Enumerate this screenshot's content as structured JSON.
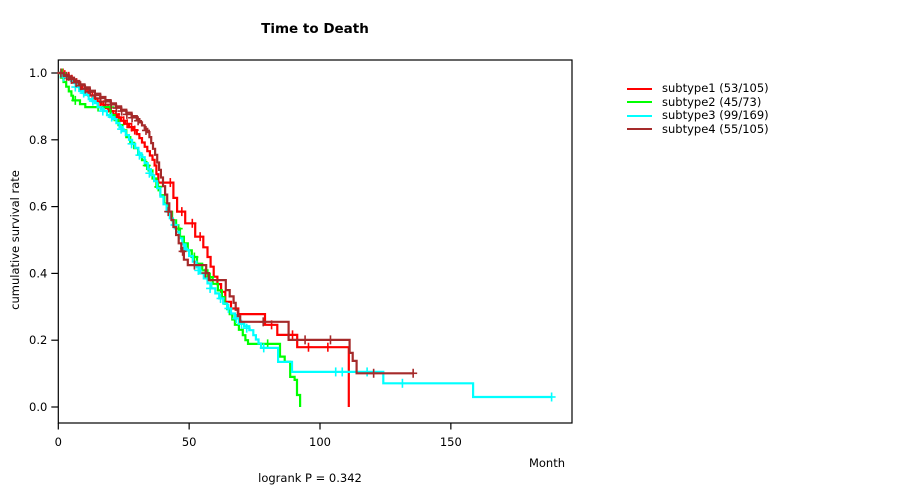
{
  "title": "Time to Death",
  "annotation": "logrank P = 0.342",
  "axes": {
    "x_label": "Month",
    "y_label": "cumulative survival rate",
    "x_ticks": [
      0,
      50,
      100,
      150
    ],
    "x_tick_labels": [
      "0",
      "50",
      "100",
      "150"
    ],
    "y_ticks": [
      0.0,
      0.2,
      0.4,
      0.6,
      0.8,
      1.0
    ],
    "y_tick_labels": [
      "0.0",
      "0.2",
      "0.4",
      "0.6",
      "0.8",
      "1.0"
    ]
  },
  "chart_data": {
    "type": "line",
    "subtype": "kaplan-meier-step",
    "title": "Time to Death",
    "xlabel": "Month",
    "ylabel": "cumulative survival rate",
    "xlim": [
      0,
      196
    ],
    "ylim": [
      0.0,
      1.0
    ],
    "grid": false,
    "legend_position": "right",
    "annotation": "logrank P = 0.342",
    "series": [
      {
        "name": "subtype1",
        "legend_label": "subtype1 (53/105)",
        "events": "53/105",
        "color": "#FF0000",
        "steps": [
          [
            0,
            1.0
          ],
          [
            1.5,
            0.995
          ],
          [
            3,
            0.99
          ],
          [
            4.5,
            0.981
          ],
          [
            6,
            0.971
          ],
          [
            7.5,
            0.962
          ],
          [
            9,
            0.952
          ],
          [
            10.5,
            0.943
          ],
          [
            12,
            0.933
          ],
          [
            13.5,
            0.924
          ],
          [
            15,
            0.914
          ],
          [
            16.5,
            0.905
          ],
          [
            18,
            0.895
          ],
          [
            19.5,
            0.886
          ],
          [
            21,
            0.876
          ],
          [
            22.5,
            0.867
          ],
          [
            24,
            0.857
          ],
          [
            25.5,
            0.848
          ],
          [
            27,
            0.838
          ],
          [
            28.5,
            0.829
          ],
          [
            30,
            0.817
          ],
          [
            31,
            0.805
          ],
          [
            32,
            0.792
          ],
          [
            33,
            0.779
          ],
          [
            34,
            0.766
          ],
          [
            35,
            0.753
          ],
          [
            36,
            0.74
          ],
          [
            36.8,
            0.723
          ],
          [
            37.5,
            0.697
          ],
          [
            38.2,
            0.672
          ],
          [
            44,
            0.626
          ],
          [
            45.4,
            0.585
          ],
          [
            48.5,
            0.55
          ],
          [
            52.3,
            0.51
          ],
          [
            55.4,
            0.478
          ],
          [
            57,
            0.449
          ],
          [
            58.2,
            0.42
          ],
          [
            59.4,
            0.39
          ],
          [
            60.8,
            0.368
          ],
          [
            62.2,
            0.345
          ],
          [
            63.8,
            0.315
          ],
          [
            66,
            0.295
          ],
          [
            68.8,
            0.278
          ],
          [
            79,
            0.246
          ],
          [
            83.7,
            0.216
          ],
          [
            91.3,
            0.179
          ],
          [
            111,
            0.0
          ]
        ],
        "censors": [
          [
            1.8,
            1.0
          ],
          [
            2.5,
            0.995
          ],
          [
            4,
            0.99
          ],
          [
            5.2,
            0.981
          ],
          [
            7,
            0.971
          ],
          [
            8.2,
            0.962
          ],
          [
            10,
            0.952
          ],
          [
            11.3,
            0.943
          ],
          [
            13,
            0.933
          ],
          [
            14.2,
            0.924
          ],
          [
            16,
            0.914
          ],
          [
            17.3,
            0.905
          ],
          [
            19,
            0.895
          ],
          [
            20.2,
            0.886
          ],
          [
            22,
            0.876
          ],
          [
            23.2,
            0.867
          ],
          [
            25,
            0.857
          ],
          [
            26.3,
            0.848
          ],
          [
            28,
            0.838
          ],
          [
            29.2,
            0.829
          ],
          [
            42.8,
            0.672
          ],
          [
            47.2,
            0.585
          ],
          [
            51.2,
            0.55
          ],
          [
            54.2,
            0.51
          ],
          [
            81.5,
            0.246
          ],
          [
            89.5,
            0.216
          ],
          [
            95.6,
            0.179
          ],
          [
            103,
            0.179
          ]
        ]
      },
      {
        "name": "subtype2",
        "legend_label": "subtype2 (45/73)",
        "events": "45/73",
        "color": "#00FF00",
        "steps": [
          [
            0,
            1.0
          ],
          [
            1,
            0.986
          ],
          [
            2,
            0.973
          ],
          [
            3,
            0.959
          ],
          [
            4,
            0.945
          ],
          [
            5,
            0.932
          ],
          [
            5.6,
            0.918
          ],
          [
            8.3,
            0.907
          ],
          [
            10.3,
            0.898
          ],
          [
            20,
            0.874
          ],
          [
            21.5,
            0.859
          ],
          [
            23,
            0.844
          ],
          [
            24.5,
            0.828
          ],
          [
            26,
            0.808
          ],
          [
            27.5,
            0.791
          ],
          [
            29,
            0.775
          ],
          [
            30.5,
            0.755
          ],
          [
            32,
            0.739
          ],
          [
            33.2,
            0.723
          ],
          [
            34.5,
            0.708
          ],
          [
            36,
            0.684
          ],
          [
            37.5,
            0.659
          ],
          [
            39,
            0.634
          ],
          [
            40.5,
            0.609
          ],
          [
            42,
            0.584
          ],
          [
            43.5,
            0.559
          ],
          [
            45,
            0.534
          ],
          [
            46.5,
            0.51
          ],
          [
            48,
            0.49
          ],
          [
            49.5,
            0.469
          ],
          [
            51,
            0.449
          ],
          [
            53,
            0.429
          ],
          [
            55,
            0.409
          ],
          [
            57,
            0.389
          ],
          [
            59,
            0.369
          ],
          [
            61,
            0.349
          ],
          [
            62.5,
            0.329
          ],
          [
            63.5,
            0.309
          ],
          [
            64.5,
            0.293
          ],
          [
            65.5,
            0.278
          ],
          [
            66.5,
            0.262
          ],
          [
            67.5,
            0.246
          ],
          [
            69,
            0.231
          ],
          [
            70.5,
            0.215
          ],
          [
            71.5,
            0.2
          ],
          [
            72.5,
            0.189
          ],
          [
            84.7,
            0.151
          ],
          [
            86.5,
            0.135
          ],
          [
            88.6,
            0.09
          ],
          [
            90.3,
            0.081
          ],
          [
            91.2,
            0.036
          ],
          [
            92.4,
            0.0
          ]
        ],
        "censors": [
          [
            1.4,
            1.0
          ],
          [
            6.5,
            0.918
          ],
          [
            15.2,
            0.898
          ],
          [
            19.9,
            0.898
          ],
          [
            33.8,
            0.723
          ],
          [
            38.2,
            0.659
          ],
          [
            46,
            0.534
          ],
          [
            52,
            0.449
          ],
          [
            58,
            0.389
          ],
          [
            80,
            0.189
          ]
        ]
      },
      {
        "name": "subtype3",
        "legend_label": "subtype3 (99/169)",
        "events": "99/169",
        "color": "#00FFFF",
        "steps": [
          [
            0,
            1.0
          ],
          [
            1.2,
            0.994
          ],
          [
            2.4,
            0.988
          ],
          [
            3.6,
            0.982
          ],
          [
            4.8,
            0.976
          ],
          [
            6,
            0.97
          ],
          [
            7,
            0.958
          ],
          [
            8,
            0.946
          ],
          [
            9.2,
            0.94
          ],
          [
            10.4,
            0.934
          ],
          [
            11.6,
            0.922
          ],
          [
            12.8,
            0.916
          ],
          [
            14,
            0.91
          ],
          [
            15,
            0.898
          ],
          [
            16.2,
            0.892
          ],
          [
            17.4,
            0.886
          ],
          [
            18.6,
            0.874
          ],
          [
            19.8,
            0.868
          ],
          [
            21,
            0.862
          ],
          [
            22.2,
            0.85
          ],
          [
            23.4,
            0.838
          ],
          [
            24.6,
            0.826
          ],
          [
            25.8,
            0.814
          ],
          [
            27,
            0.8
          ],
          [
            28.2,
            0.788
          ],
          [
            29.4,
            0.776
          ],
          [
            30.6,
            0.76
          ],
          [
            31.8,
            0.748
          ],
          [
            33,
            0.73
          ],
          [
            34.2,
            0.712
          ],
          [
            35.4,
            0.694
          ],
          [
            36.6,
            0.676
          ],
          [
            37.8,
            0.655
          ],
          [
            39,
            0.63
          ],
          [
            40.2,
            0.607
          ],
          [
            41.4,
            0.585
          ],
          [
            42.6,
            0.565
          ],
          [
            43.8,
            0.545
          ],
          [
            45,
            0.525
          ],
          [
            46.2,
            0.505
          ],
          [
            47.4,
            0.487
          ],
          [
            48.6,
            0.47
          ],
          [
            50,
            0.452
          ],
          [
            51.4,
            0.435
          ],
          [
            52.8,
            0.418
          ],
          [
            54.2,
            0.4
          ],
          [
            55.6,
            0.385
          ],
          [
            57,
            0.37
          ],
          [
            58.5,
            0.355
          ],
          [
            60,
            0.34
          ],
          [
            61.5,
            0.325
          ],
          [
            63,
            0.31
          ],
          [
            64.5,
            0.295
          ],
          [
            66,
            0.28
          ],
          [
            67.5,
            0.265
          ],
          [
            69,
            0.253
          ],
          [
            71,
            0.242
          ],
          [
            73,
            0.23
          ],
          [
            74.5,
            0.215
          ],
          [
            75.5,
            0.202
          ],
          [
            76.5,
            0.19
          ],
          [
            77.5,
            0.177
          ],
          [
            84,
            0.135
          ],
          [
            89.3,
            0.105
          ],
          [
            124.2,
            0.071
          ],
          [
            158.5,
            0.03
          ],
          [
            188.5,
            0.03
          ]
        ],
        "censors": [
          [
            2,
            0.988
          ],
          [
            6.5,
            0.958
          ],
          [
            9.7,
            0.94
          ],
          [
            13.2,
            0.916
          ],
          [
            17,
            0.886
          ],
          [
            20.4,
            0.868
          ],
          [
            24,
            0.832
          ],
          [
            28,
            0.788
          ],
          [
            31,
            0.754
          ],
          [
            34.8,
            0.7
          ],
          [
            44.4,
            0.545
          ],
          [
            48,
            0.475
          ],
          [
            53.5,
            0.409
          ],
          [
            58,
            0.355
          ],
          [
            62,
            0.325
          ],
          [
            65,
            0.295
          ],
          [
            68,
            0.265
          ],
          [
            70,
            0.248
          ],
          [
            72,
            0.236
          ],
          [
            78.5,
            0.177
          ],
          [
            106,
            0.105
          ],
          [
            108.5,
            0.105
          ],
          [
            118,
            0.105
          ],
          [
            131.5,
            0.071
          ],
          [
            188.5,
            0.03
          ]
        ]
      },
      {
        "name": "subtype4",
        "legend_label": "subtype4 (55/105)",
        "events": "55/105",
        "color": "#A52A2A",
        "steps": [
          [
            0,
            1.0
          ],
          [
            2,
            0.995
          ],
          [
            4,
            0.986
          ],
          [
            6,
            0.976
          ],
          [
            8,
            0.966
          ],
          [
            10,
            0.957
          ],
          [
            12,
            0.947
          ],
          [
            14,
            0.938
          ],
          [
            16,
            0.928
          ],
          [
            18,
            0.919
          ],
          [
            20,
            0.909
          ],
          [
            22,
            0.9
          ],
          [
            24,
            0.89
          ],
          [
            26,
            0.881
          ],
          [
            28,
            0.871
          ],
          [
            30,
            0.862
          ],
          [
            31,
            0.852
          ],
          [
            32,
            0.843
          ],
          [
            33,
            0.833
          ],
          [
            34,
            0.823
          ],
          [
            34.8,
            0.808
          ],
          [
            35.5,
            0.79
          ],
          [
            36.2,
            0.773
          ],
          [
            37,
            0.755
          ],
          [
            37.8,
            0.732
          ],
          [
            38.5,
            0.71
          ],
          [
            39.2,
            0.687
          ],
          [
            40,
            0.661
          ],
          [
            40.8,
            0.636
          ],
          [
            41.6,
            0.61
          ],
          [
            42.4,
            0.585
          ],
          [
            43.2,
            0.56
          ],
          [
            44,
            0.539
          ],
          [
            45,
            0.515
          ],
          [
            46,
            0.49
          ],
          [
            47,
            0.466
          ],
          [
            48,
            0.441
          ],
          [
            49.5,
            0.425
          ],
          [
            56.5,
            0.401
          ],
          [
            57.5,
            0.38
          ],
          [
            64,
            0.35
          ],
          [
            65.5,
            0.331
          ],
          [
            67,
            0.312
          ],
          [
            67.8,
            0.291
          ],
          [
            68.6,
            0.272
          ],
          [
            69.5,
            0.255
          ],
          [
            88,
            0.201
          ],
          [
            111.3,
            0.162
          ],
          [
            112.5,
            0.138
          ],
          [
            114,
            0.101
          ],
          [
            135.6,
            0.101
          ]
        ],
        "censors": [
          [
            1,
            1.0
          ],
          [
            3.2,
            0.99
          ],
          [
            5,
            0.981
          ],
          [
            6.8,
            0.971
          ],
          [
            8.5,
            0.962
          ],
          [
            10.3,
            0.952
          ],
          [
            12.2,
            0.943
          ],
          [
            14.1,
            0.933
          ],
          [
            16.2,
            0.924
          ],
          [
            18.1,
            0.914
          ],
          [
            20.2,
            0.905
          ],
          [
            22.2,
            0.895
          ],
          [
            24.2,
            0.886
          ],
          [
            26.2,
            0.876
          ],
          [
            28.2,
            0.866
          ],
          [
            30.5,
            0.857
          ],
          [
            33.5,
            0.828
          ],
          [
            42,
            0.585
          ],
          [
            47.5,
            0.466
          ],
          [
            52,
            0.425
          ],
          [
            56.2,
            0.401
          ],
          [
            78.3,
            0.255
          ],
          [
            94.3,
            0.201
          ],
          [
            104,
            0.201
          ],
          [
            120.5,
            0.101
          ],
          [
            135.6,
            0.101
          ]
        ]
      }
    ]
  }
}
